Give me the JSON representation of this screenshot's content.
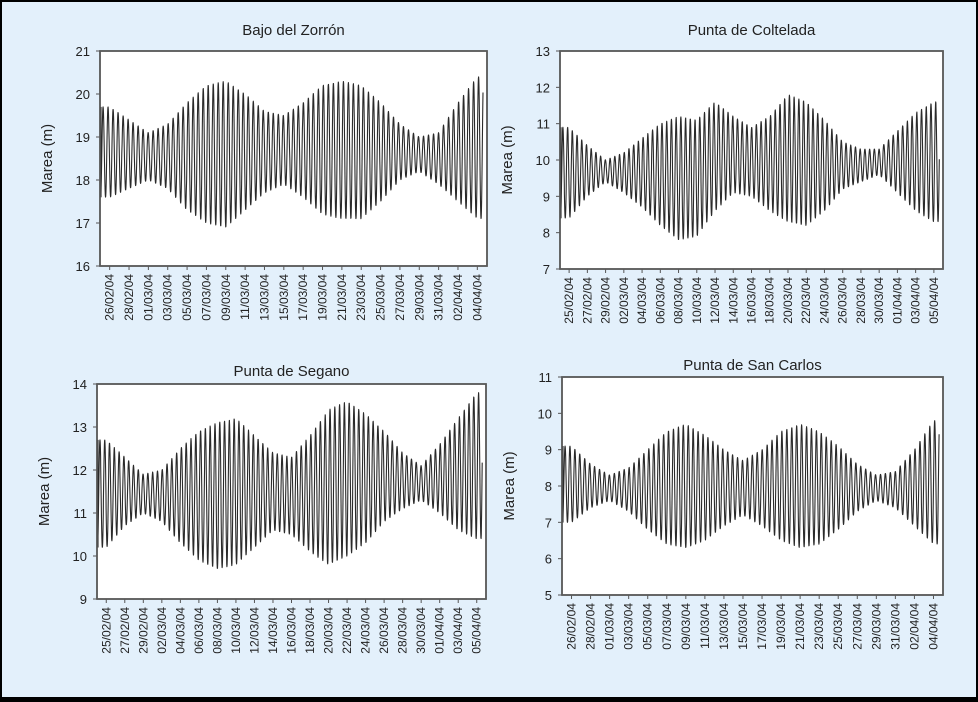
{
  "chart_data": [
    {
      "type": "line",
      "title": "Bajo del Zorrón",
      "ylabel": "Marea (m)",
      "ylim": [
        16,
        21
      ],
      "yticks": [
        16,
        17,
        18,
        19,
        20,
        21
      ],
      "xlabels": [
        "26/02/04",
        "28/02/04",
        "01/03/04",
        "03/03/04",
        "05/03/04",
        "07/03/04",
        "09/03/04",
        "11/03/04",
        "13/03/04",
        "15/03/04",
        "17/03/04",
        "19/03/04",
        "21/03/04",
        "23/03/04",
        "25/03/04",
        "27/03/04",
        "29/03/04",
        "31/03/04",
        "02/04/04",
        "04/04/04"
      ],
      "series": [
        {
          "envelope": {
            "x": [
              "26/02/04",
              "01/03/04",
              "03/03/04",
              "05/03/04",
              "07/03/04",
              "09/03/04",
              "11/03/04",
              "13/03/04",
              "15/03/04",
              "17/03/04",
              "19/03/04",
              "21/03/04",
              "23/03/04",
              "25/03/04",
              "27/03/04",
              "29/03/04",
              "31/03/04",
              "02/04/04",
              "04/04/04"
            ],
            "high": [
              19.7,
              19.1,
              19.3,
              19.8,
              20.2,
              20.3,
              20.0,
              19.6,
              19.5,
              19.8,
              20.2,
              20.3,
              20.2,
              19.8,
              19.3,
              19.0,
              19.1,
              19.8,
              20.4
            ],
            "low": [
              17.6,
              18.0,
              17.8,
              17.3,
              17.0,
              16.9,
              17.3,
              17.7,
              17.9,
              17.6,
              17.2,
              17.1,
              17.1,
              17.5,
              18.0,
              18.2,
              17.9,
              17.5,
              17.1
            ],
            "mean": 18.6
          }
        }
      ]
    },
    {
      "type": "line",
      "title": "Punta de Coltelada",
      "ylabel": "Marea (m)",
      "ylim": [
        7,
        13
      ],
      "yticks": [
        7,
        8,
        9,
        10,
        11,
        12,
        13
      ],
      "xlabels": [
        "25/02/04",
        "27/02/04",
        "29/02/04",
        "02/03/04",
        "04/03/04",
        "06/03/04",
        "08/03/04",
        "10/03/04",
        "12/03/04",
        "14/03/04",
        "16/03/04",
        "18/03/04",
        "20/03/04",
        "22/03/04",
        "24/03/04",
        "26/03/04",
        "28/03/04",
        "30/03/04",
        "01/04/04",
        "03/04/04",
        "05/04/04"
      ],
      "series": [
        {
          "envelope": {
            "x": [
              "25/02/04",
              "27/02/04",
              "29/02/04",
              "02/03/04",
              "04/03/04",
              "06/03/04",
              "08/03/04",
              "10/03/04",
              "12/03/04",
              "14/03/04",
              "16/03/04",
              "18/03/04",
              "20/03/04",
              "22/03/04",
              "24/03/04",
              "26/03/04",
              "28/03/04",
              "30/03/04",
              "01/04/04",
              "03/04/04",
              "05/04/04"
            ],
            "high": [
              10.9,
              10.4,
              10.0,
              10.2,
              10.6,
              11.0,
              11.2,
              11.1,
              11.6,
              11.2,
              10.9,
              11.2,
              11.8,
              11.6,
              11.1,
              10.5,
              10.3,
              10.3,
              10.8,
              11.3,
              11.6
            ],
            "low": [
              8.4,
              9.0,
              9.4,
              9.1,
              8.7,
              8.2,
              7.8,
              7.9,
              8.6,
              9.1,
              9.0,
              8.6,
              8.3,
              8.2,
              8.6,
              9.2,
              9.4,
              9.6,
              9.1,
              8.6,
              8.3
            ],
            "mean": 9.8
          }
        }
      ]
    },
    {
      "type": "line",
      "title": "Punta de Segano",
      "ylabel": "Marea (m)",
      "ylim": [
        9,
        14
      ],
      "yticks": [
        9,
        10,
        11,
        12,
        13,
        14
      ],
      "xlabels": [
        "25/02/04",
        "27/02/04",
        "29/02/04",
        "02/03/04",
        "04/03/04",
        "06/03/04",
        "08/03/04",
        "10/03/04",
        "12/03/04",
        "14/03/04",
        "16/03/04",
        "18/03/04",
        "20/03/04",
        "22/03/04",
        "24/03/04",
        "26/03/04",
        "28/03/04",
        "30/03/04",
        "01/04/04",
        "03/04/04",
        "05/04/04"
      ],
      "series": [
        {
          "envelope": {
            "x": [
              "25/02/04",
              "27/02/04",
              "29/02/04",
              "02/03/04",
              "04/03/04",
              "06/03/04",
              "08/03/04",
              "10/03/04",
              "12/03/04",
              "14/03/04",
              "16/03/04",
              "18/03/04",
              "20/03/04",
              "22/03/04",
              "24/03/04",
              "26/03/04",
              "28/03/04",
              "30/03/04",
              "01/04/04",
              "03/04/04",
              "05/04/04"
            ],
            "high": [
              12.7,
              12.3,
              11.9,
              12.0,
              12.5,
              12.9,
              13.1,
              13.2,
              12.8,
              12.4,
              12.3,
              12.8,
              13.4,
              13.6,
              13.3,
              12.9,
              12.4,
              12.1,
              12.6,
              13.2,
              13.8
            ],
            "low": [
              10.2,
              10.7,
              11.0,
              10.8,
              10.3,
              9.9,
              9.7,
              9.8,
              10.2,
              10.6,
              10.5,
              10.1,
              9.8,
              10.0,
              10.3,
              10.8,
              11.1,
              11.3,
              11.0,
              10.6,
              10.4
            ],
            "mean": 11.5
          }
        }
      ]
    },
    {
      "type": "line",
      "title": "Punta de San Carlos",
      "ylabel": "Marea (m)",
      "ylim": [
        5,
        11
      ],
      "yticks": [
        5,
        6,
        7,
        8,
        9,
        10,
        11
      ],
      "xlabels": [
        "26/02/04",
        "28/02/04",
        "01/03/04",
        "03/03/04",
        "05/03/04",
        "07/03/04",
        "09/03/04",
        "11/03/04",
        "13/03/04",
        "15/03/04",
        "17/03/04",
        "19/03/04",
        "21/03/04",
        "23/03/04",
        "25/03/04",
        "27/03/04",
        "29/03/04",
        "31/03/04",
        "02/04/04",
        "04/04/04"
      ],
      "series": [
        {
          "envelope": {
            "x": [
              "26/02/04",
              "28/02/04",
              "01/03/04",
              "03/03/04",
              "05/03/04",
              "07/03/04",
              "09/03/04",
              "11/03/04",
              "13/03/04",
              "15/03/04",
              "17/03/04",
              "19/03/04",
              "21/03/04",
              "23/03/04",
              "25/03/04",
              "27/03/04",
              "29/03/04",
              "31/03/04",
              "02/04/04",
              "04/04/04"
            ],
            "high": [
              9.1,
              8.6,
              8.3,
              8.5,
              9.0,
              9.5,
              9.7,
              9.4,
              9.0,
              8.7,
              9.0,
              9.5,
              9.7,
              9.5,
              9.1,
              8.6,
              8.3,
              8.4,
              9.0,
              9.8
            ],
            "low": [
              7.0,
              7.4,
              7.6,
              7.3,
              6.8,
              6.4,
              6.3,
              6.5,
              6.9,
              7.2,
              6.9,
              6.5,
              6.3,
              6.4,
              6.8,
              7.3,
              7.6,
              7.4,
              6.9,
              6.4
            ],
            "mean": 8.0
          }
        }
      ]
    }
  ]
}
